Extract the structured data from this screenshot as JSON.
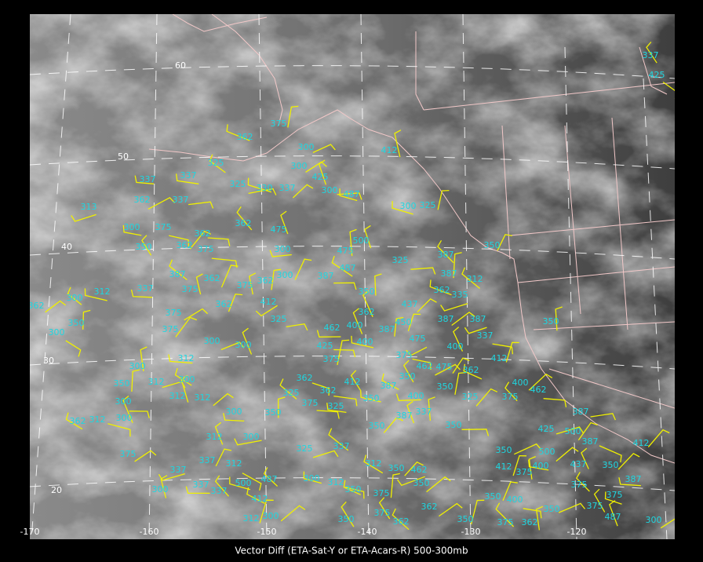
{
  "caption": "Vector Diff (ETA-Sat-Y or ETA-Acars-R) 500-300mb",
  "longitude_labels": [
    "-170",
    "-160",
    "-150",
    "-140",
    "-130",
    "-120"
  ],
  "latitude_labels": [
    "60",
    "50",
    "40",
    "30",
    "20"
  ],
  "station_labels": [
    "362",
    "337",
    "325",
    "337",
    "362",
    "337",
    "325",
    "330",
    "337",
    "362",
    "475",
    "425",
    "300",
    "487",
    "300",
    "325",
    "412",
    "300",
    "300",
    "375",
    "313",
    "300",
    "375",
    "362",
    "350",
    "362",
    "375",
    "500",
    "325",
    "387",
    "387",
    "312",
    "350",
    "300",
    "475",
    "487",
    "387",
    "387",
    "362",
    "375",
    "362",
    "300",
    "350",
    "437",
    "362",
    "335",
    "300",
    "362",
    "312",
    "337",
    "375",
    "375",
    "362",
    "412",
    "400",
    "362",
    "450",
    "387",
    "475",
    "387",
    "387",
    "337",
    "300",
    "350",
    "375",
    "300",
    "300",
    "325",
    "462",
    "425",
    "400",
    "412",
    "375",
    "462",
    "475",
    "362",
    "400",
    "300",
    "312",
    "375",
    "412",
    "387",
    "350",
    "350",
    "325",
    "400",
    "462",
    "350",
    "312",
    "300",
    "362",
    "325",
    "350",
    "400",
    "375",
    "300",
    "312",
    "312",
    "362",
    "375",
    "325",
    "350",
    "387",
    "337",
    "387",
    "362",
    "312",
    "300",
    "300",
    "350",
    "350",
    "425",
    "500",
    "312",
    "300",
    "325",
    "337",
    "350",
    "500",
    "387",
    "412",
    "375",
    "337",
    "312",
    "312",
    "350",
    "462",
    "412",
    "375",
    "400",
    "437",
    "350",
    "387",
    "337",
    "500",
    "487",
    "300",
    "312",
    "350",
    "375",
    "300",
    "337",
    "337",
    "412",
    "350",
    "375",
    "350",
    "400",
    "375",
    "362",
    "375",
    "350",
    "375",
    "300",
    "312",
    "350",
    "362",
    "350",
    "375",
    "362",
    "487",
    "300",
    "337",
    "425",
    "350"
  ]
}
